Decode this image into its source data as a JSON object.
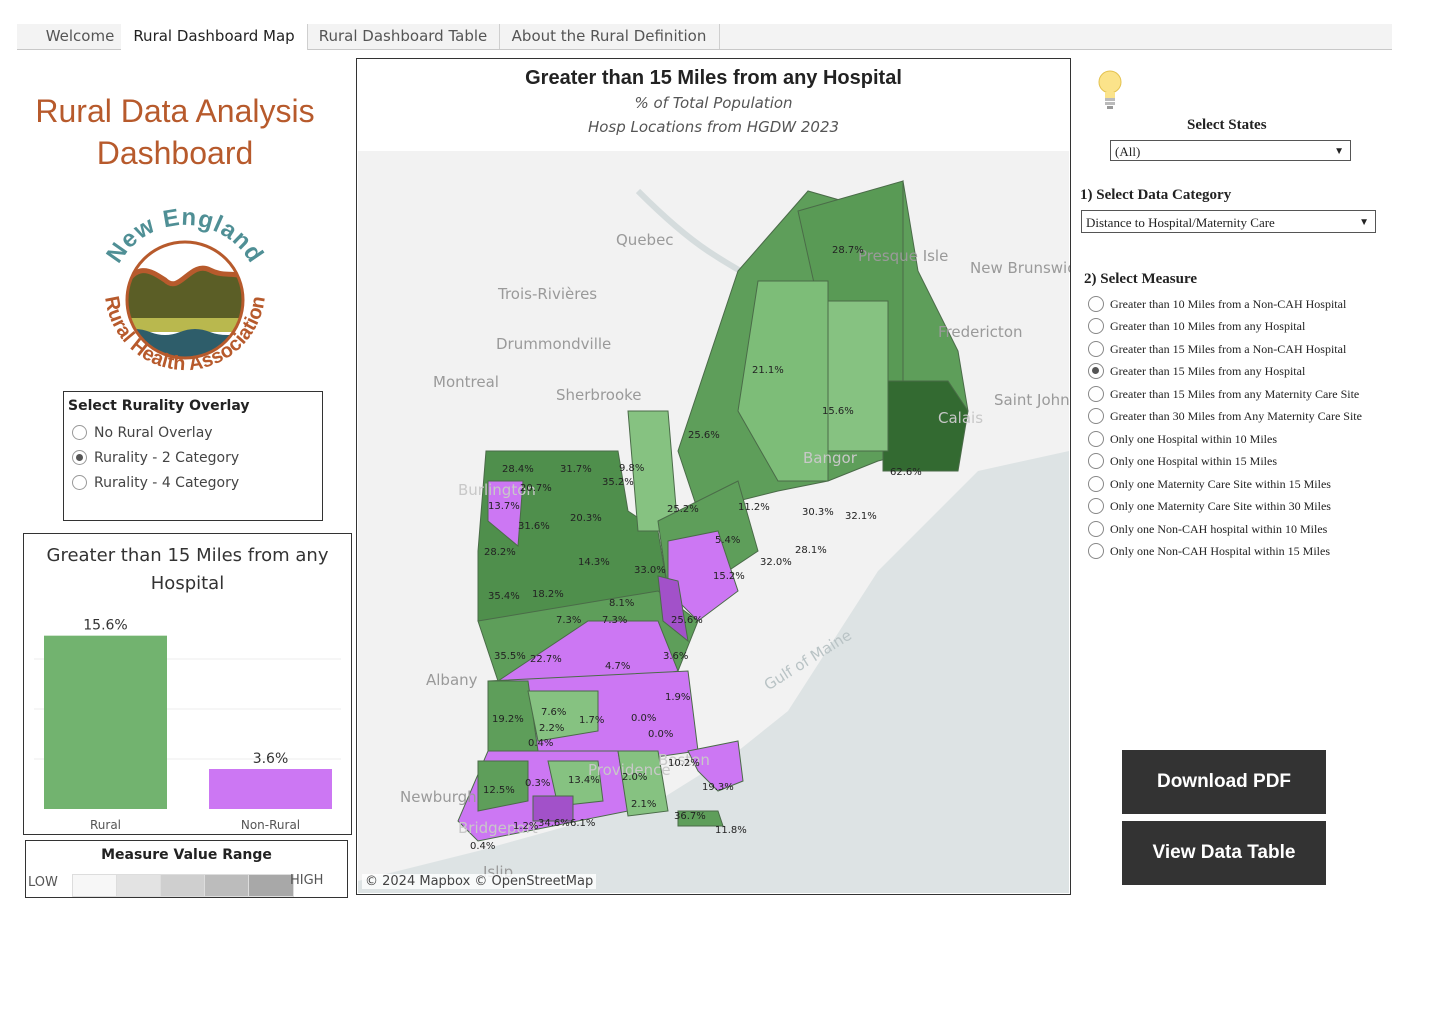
{
  "tabs": [
    "Welcome",
    "Rural Dashboard Map",
    "Rural Dashboard Table",
    "About the Rural Definition"
  ],
  "dashboard_title_line1": "Rural Data Analysis",
  "dashboard_title_line2": "Dashboard",
  "logo": {
    "top_text": "New England",
    "bottom_text": "Rural Health Association"
  },
  "rurality": {
    "title": "Select Rurality Overlay",
    "options": [
      "No Rural Overlay",
      "Rurality - 2 Category",
      "Rurality - 4 Category"
    ],
    "selected": "Rurality - 2 Category"
  },
  "chart": {
    "title_line1": "Greater than 15 Miles from any",
    "title_line2": "Hospital"
  },
  "chart_data": {
    "type": "bar",
    "categories": [
      "Rural",
      "Non-Rural"
    ],
    "values": [
      15.6,
      3.6
    ],
    "value_labels": [
      "15.6%",
      "3.6%"
    ],
    "colors": [
      "#72b36f",
      "#cc77f3"
    ],
    "ylim": [
      0,
      18
    ]
  },
  "range": {
    "title": "Measure Value Range",
    "low": "LOW",
    "high": "HIGH",
    "swatches": [
      "#f7f7f7",
      "#e3e3e3",
      "#cfcfcf",
      "#bcbcbc",
      "#a8a8a8"
    ]
  },
  "map": {
    "title": "Greater than 15 Miles from any Hospital",
    "subtitle1": "% of Total Population",
    "subtitle2": "Hosp Locations from HGDW  2023",
    "attribution": "© 2024 Mapbox  © OpenStreetMap",
    "places": [
      "Quebec",
      "Trois-Rivières",
      "Drummondville",
      "Montreal",
      "Sherbrooke",
      "Albany",
      "Newburgh",
      "Islip",
      "Fredericton",
      "Saint John",
      "Calais",
      "Bangor",
      "Presque Isle",
      "New Brunswick",
      "Gulf of Maine",
      "Burlington",
      "Boston",
      "Providence",
      "Bridgeport"
    ],
    "labels": [
      "28.7%",
      "21.1%",
      "15.6%",
      "62.6%",
      "25.6%",
      "9.8%",
      "35.2%",
      "28.4%",
      "31.7%",
      "20.7%",
      "13.7%",
      "31.6%",
      "20.3%",
      "25.2%",
      "11.2%",
      "30.3%",
      "32.1%",
      "5.4%",
      "28.2%",
      "14.3%",
      "33.0%",
      "15.2%",
      "32.0%",
      "28.1%",
      "35.4%",
      "18.2%",
      "8.1%",
      "7.3%",
      "7.3%",
      "25.6%",
      "35.5%",
      "22.7%",
      "4.7%",
      "3.6%",
      "1.9%",
      "19.2%",
      "7.6%",
      "2.2%",
      "1.7%",
      "0.0%",
      "0.0%",
      "0.4%",
      "10.2%",
      "0.3%",
      "13.4%",
      "2.0%",
      "19.3%",
      "12.5%",
      "2.1%",
      "1.2%",
      "34.6%",
      "6.1%",
      "36.7%",
      "11.8%",
      "0.4%"
    ]
  },
  "states": {
    "label": "Select States",
    "value": "(All)"
  },
  "category": {
    "label": "1) Select Data Category",
    "value": "Distance to Hospital/Maternity Care"
  },
  "measure": {
    "label": "2) Select Measure",
    "options": [
      "Greater than 10 Miles from a Non-CAH Hospital",
      "Greater than 10 Miles from any Hospital",
      "Greater than 15 Miles from a Non-CAH Hospital",
      "Greater than 15 Miles from any Hospital",
      "Greater than 15 Miles from any Maternity Care Site",
      "Greater than 30 Miles from Any Maternity Care Site",
      "Only one Hospital within 10 Miles",
      "Only one Hospital within 15 Miles",
      "Only one Maternity Care Site within 15 Miles",
      "Only one Maternity Care Site within 30 Miles",
      "Only one Non-CAH hospital within 10 Miles",
      "Only one Non-CAH Hospital within 15 Miles"
    ],
    "selected": "Greater than 15 Miles from any Hospital"
  },
  "buttons": {
    "download": "Download PDF",
    "view_table": "View Data Table"
  }
}
